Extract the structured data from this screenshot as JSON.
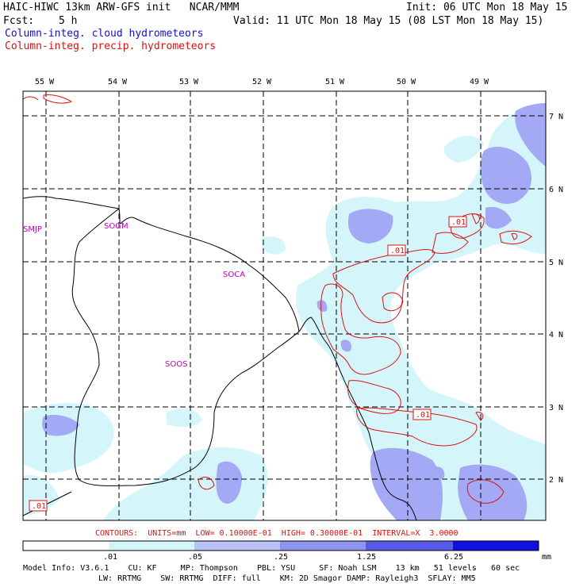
{
  "header": {
    "title": "HAIC-HIWC 13km ARW-GFS init   NCAR/MMM",
    "init": "Init: 06 UTC Mon 18 May 15",
    "fcst_label": "Fcst:",
    "fcst_value": "5 h",
    "valid": "Valid: 11 UTC Mon 18 May 15 (08 LST Mon 18 May 15)",
    "field1": "Column-integ. cloud hydrometeors",
    "field2": "Column-integ. precip. hydrometeors"
  },
  "map": {
    "longitudes": [
      "55 W",
      "54 W",
      "53 W",
      "52 W",
      "51 W",
      "50 W",
      "49 W"
    ],
    "latitudes": [
      "7 N",
      "6 N",
      "5 N",
      "4 N",
      "3 N",
      "2 N"
    ],
    "stations": [
      "SMJP",
      "SOGM",
      "SOCA",
      "SOOS"
    ],
    "contour_labels": [
      ".01",
      ".01",
      ".01",
      ".01"
    ],
    "colors": {
      "cloud_light": "#d4f6fb",
      "cloud_mid": "#a3a9f4",
      "precip_contour": "#e01010",
      "coast": "#000000"
    }
  },
  "contours_line": "CONTOURS:  UNITS=mm  LOW= 0.10000E-01  HIGH= 0.30000E-01  INTERVAL=X  3.0000",
  "colorbar": {
    "ticks": [
      ".01",
      ".05",
      ".25",
      "1.25",
      "6.25"
    ],
    "units": "mm",
    "colors": [
      "#ffffff",
      "#d4f6fb",
      "#b8c2f8",
      "#8f95f0",
      "#5a5ae8",
      "#1010e0"
    ]
  },
  "model_info": {
    "line1": "Model Info: V3.6.1    CU: KF     MP: Thompson    PBL: YSU     SF: Noah LSM    13 km   51 levels   60 sec",
    "line2": "LW: RRTMG    SW: RRTMG  DIFF: full    KM: 2D Smagor DAMP: Rayleigh3  SFLAY: MM5"
  }
}
